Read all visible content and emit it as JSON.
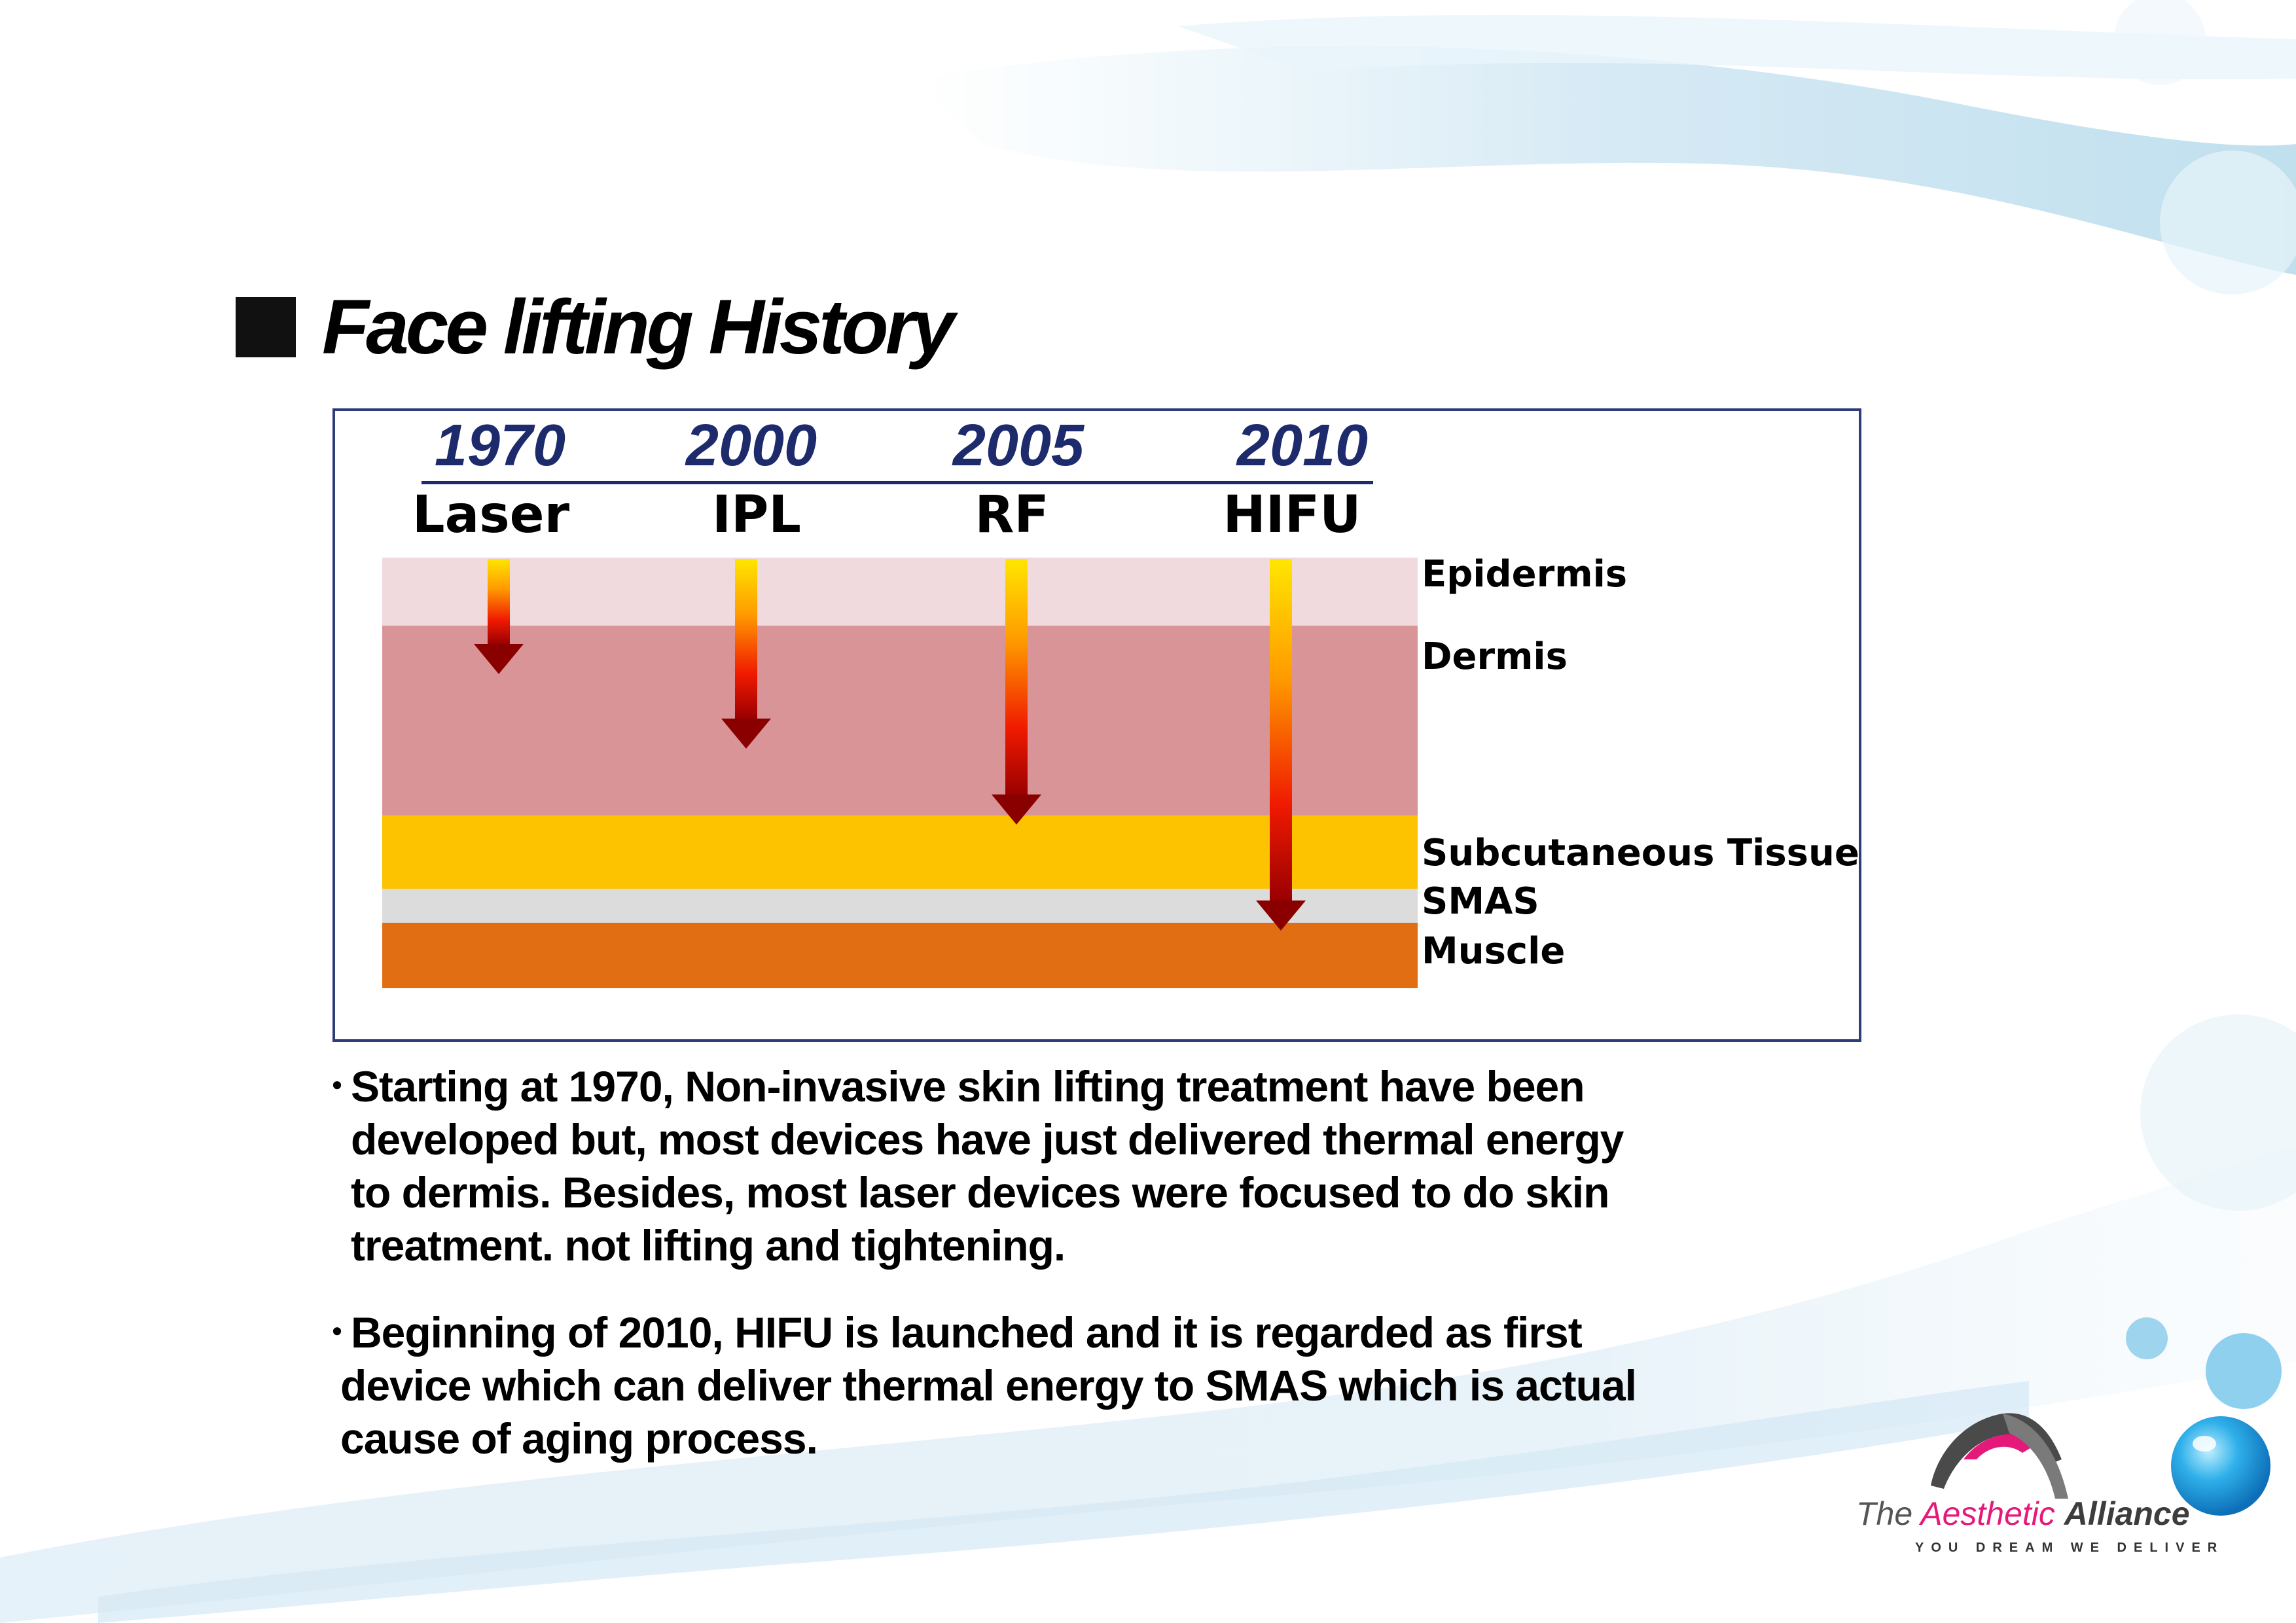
{
  "slide": {
    "title": "Face lifting History"
  },
  "diagram": {
    "milestones": [
      {
        "year": "1970",
        "tech": "Laser",
        "depth": "dermis-upper"
      },
      {
        "year": "2000",
        "tech": "IPL",
        "depth": "dermis-mid"
      },
      {
        "year": "2005",
        "tech": "RF",
        "depth": "dermis-lower"
      },
      {
        "year": "2010",
        "tech": "HIFU",
        "depth": "smas"
      }
    ],
    "layers": [
      {
        "name": "Epidermis",
        "color": "#f0dadd"
      },
      {
        "name": "Dermis",
        "color": "#d99497"
      },
      {
        "name": "Subcutaneous Tissue",
        "color": "#fdc200"
      },
      {
        "name": "SMAS",
        "color": "#dcdcdc"
      },
      {
        "name": "Muscle",
        "color": "#e26e14"
      }
    ],
    "frame_color": "#2e3d76",
    "year_color": "#1d2a6b"
  },
  "bullets": [
    {
      "lines": [
        "Starting at 1970, Non-invasive skin lifting treatment have been",
        "developed but, most devices have just delivered thermal energy",
        "to dermis.  Besides, most laser devices were focused to do skin",
        "treatment. not lifting and tightening."
      ]
    },
    {
      "lines": [
        "Beginning of 2010, HIFU is launched and it is regarded as first",
        "device which can deliver thermal energy to SMAS which is actual",
        "cause of aging process."
      ]
    }
  ],
  "brand": {
    "the": "The",
    "aesthetic": "Aesthetic",
    "alliance": "Alliance",
    "tagline": "YOU DREAM WE DELIVER",
    "accent_color": "#e5197a"
  },
  "bullet_symbol": "・"
}
